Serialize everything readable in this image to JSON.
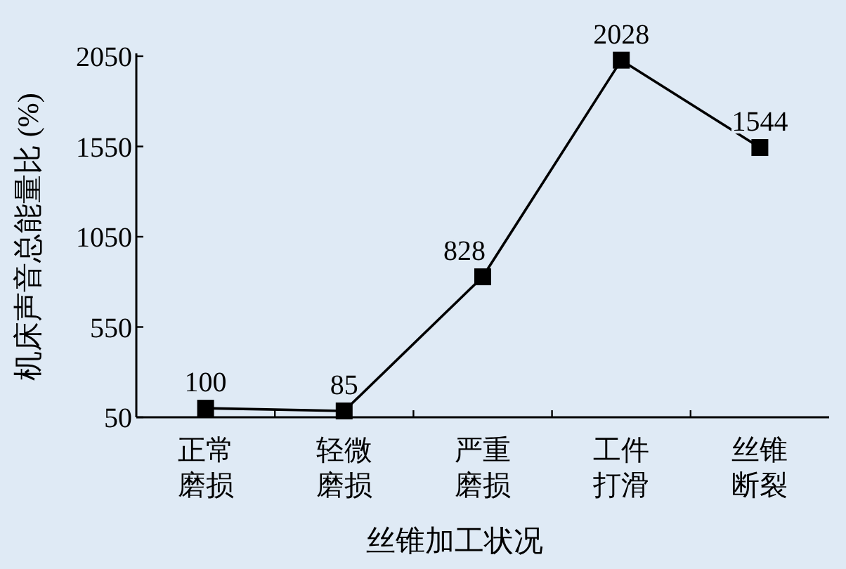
{
  "chart_data": {
    "type": "line",
    "xlabel": "丝锥加工状况",
    "ylabel": "机床声音总能量比 (%)",
    "categories": [
      "正常磨损",
      "轻微磨损",
      "严重磨损",
      "工件打滑",
      "丝锥断裂"
    ],
    "series": [
      {
        "color": "#000000",
        "values": [
          100,
          85,
          828,
          2028,
          1544
        ]
      }
    ],
    "ylim": [
      50,
      2050
    ],
    "yticks": [
      50,
      550,
      1050,
      1550,
      2050
    ],
    "marker": "square",
    "line_style": "solid",
    "data_labels": true,
    "grid": false
  }
}
